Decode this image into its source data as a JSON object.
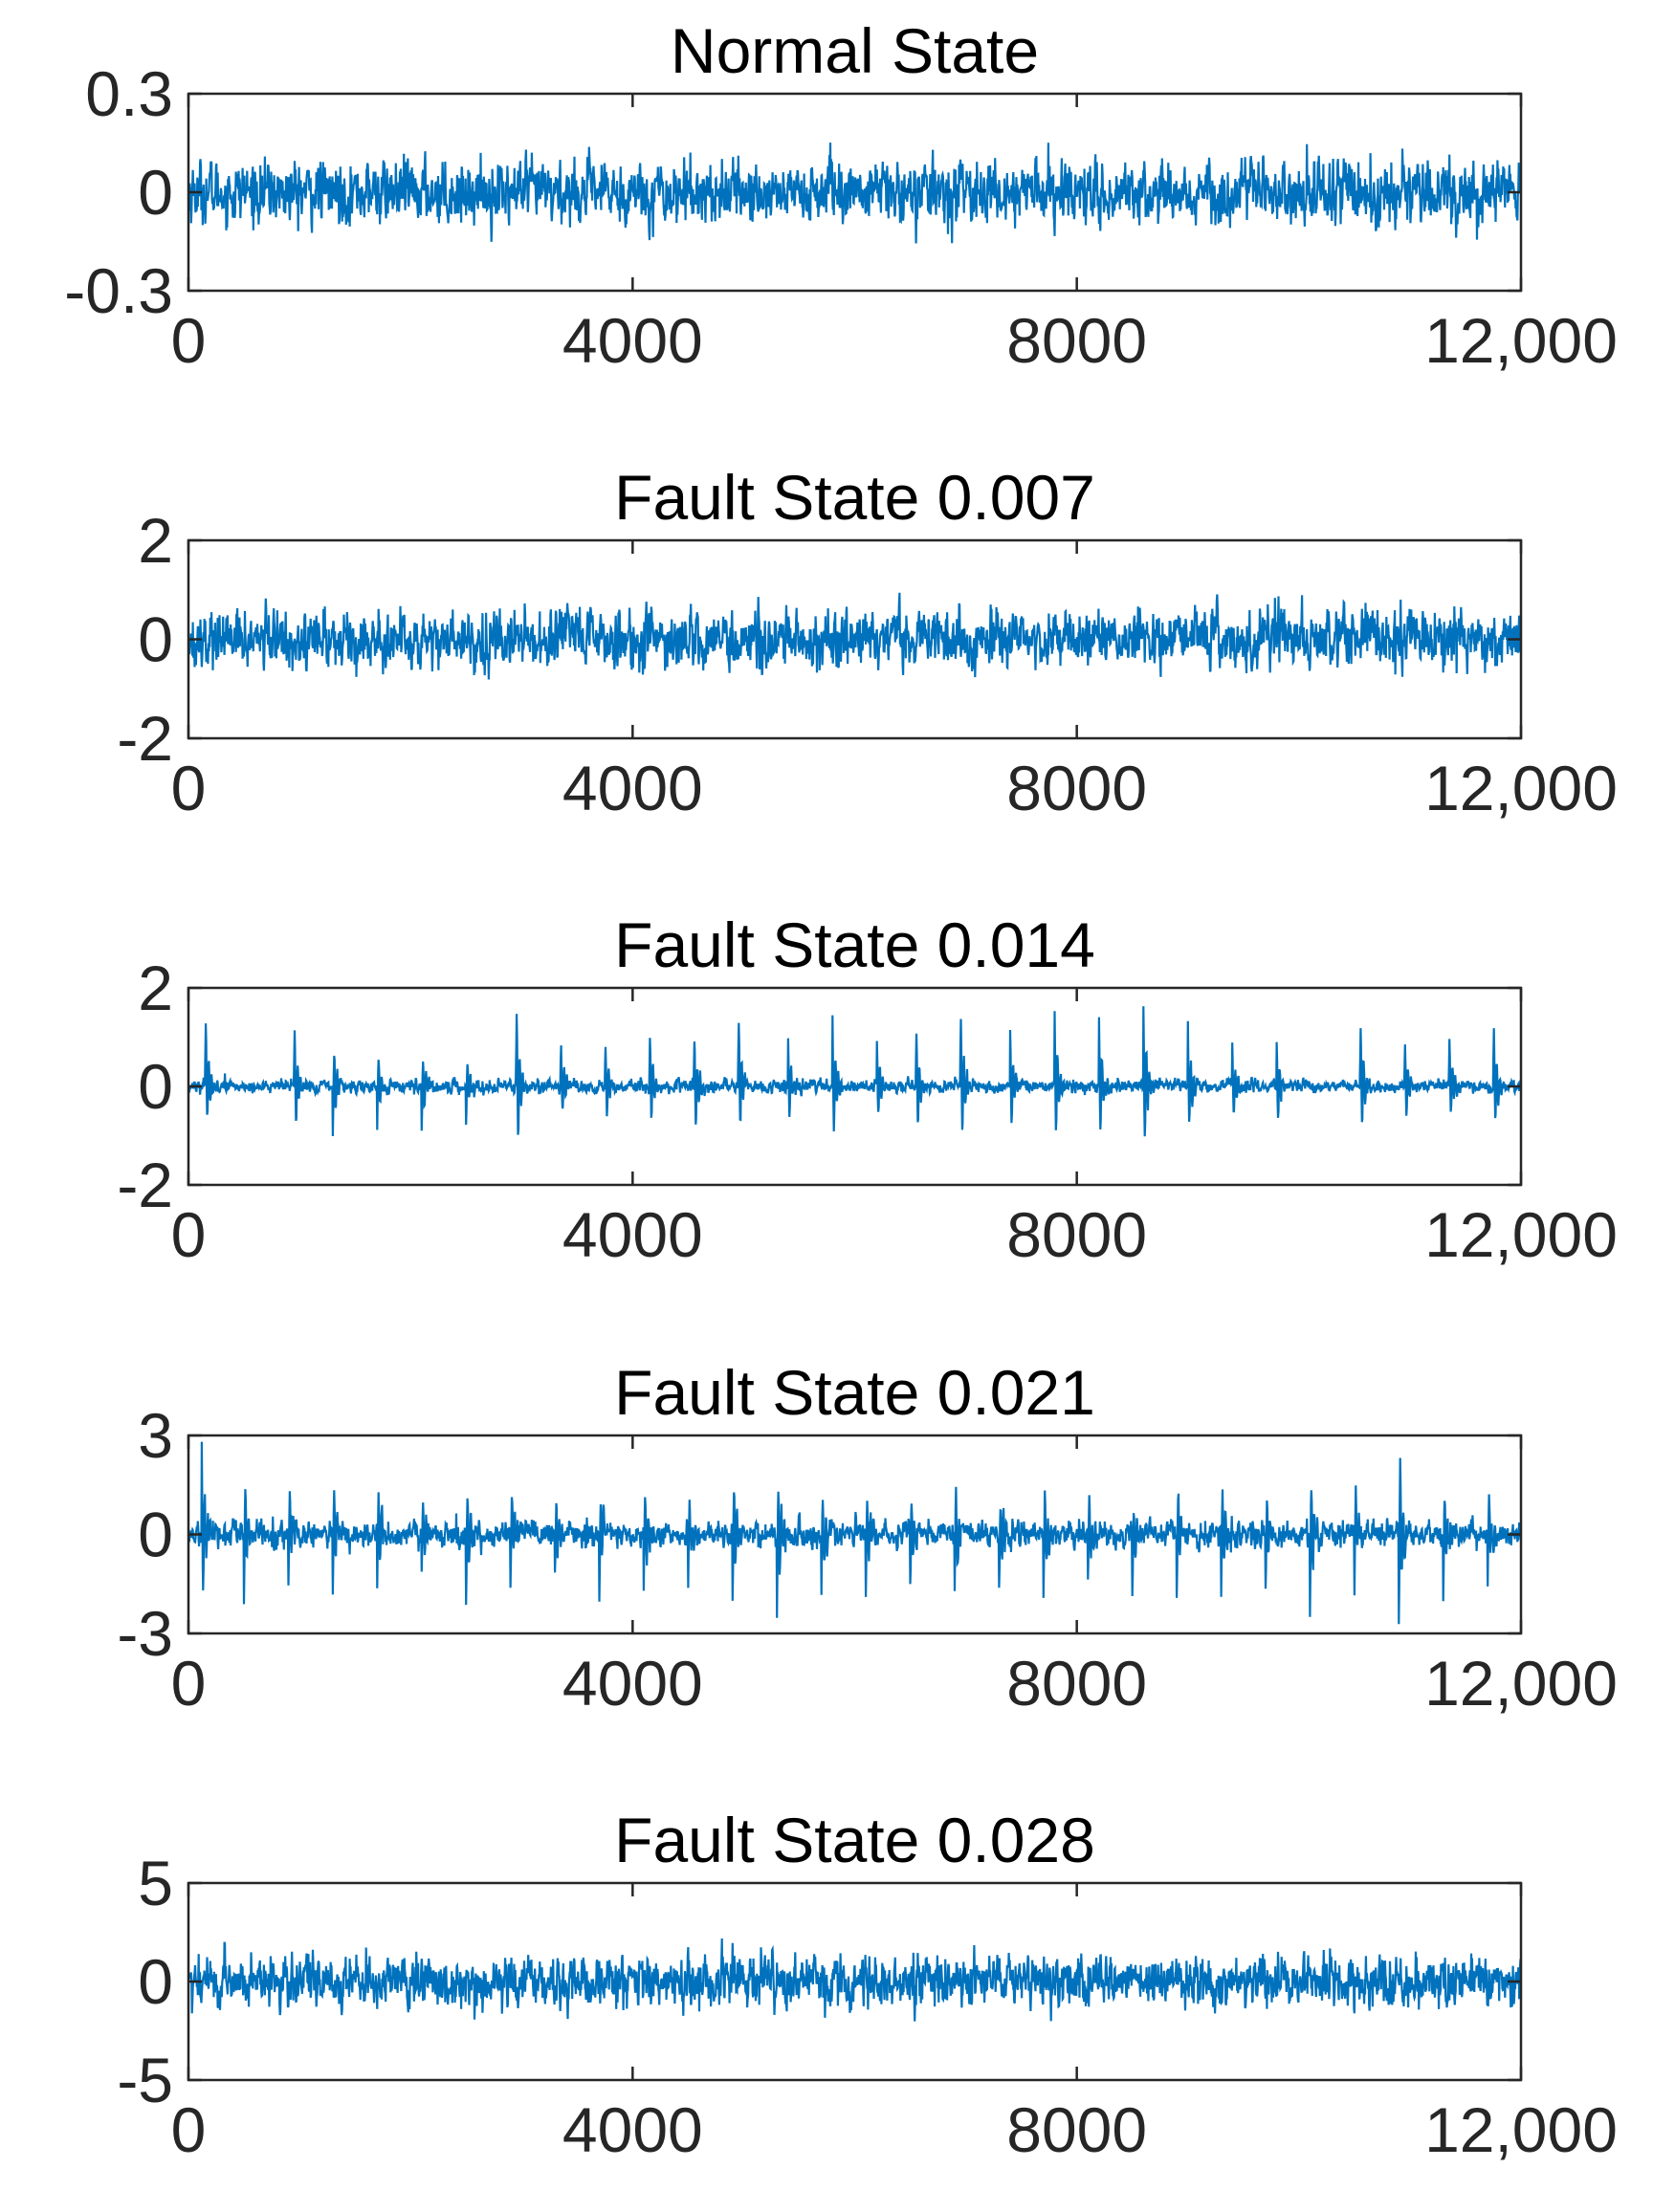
{
  "chart_data": [
    {
      "type": "line",
      "title": "Normal State",
      "xlim": [
        0,
        12000
      ],
      "ylim": [
        -0.3,
        0.3
      ],
      "xticks": [
        0,
        4000,
        8000,
        12000
      ],
      "xtick_labels": [
        "0",
        "4000",
        "8000",
        "12,000"
      ],
      "yticks": [
        -0.3,
        0,
        0.3
      ],
      "ytick_labels": [
        "-0.3",
        "0",
        "0.3"
      ],
      "signal": {
        "amplitude": 0.07,
        "peak": 0.24,
        "impulses": []
      }
    },
    {
      "type": "line",
      "title": "Fault State 0.007",
      "xlim": [
        0,
        12000
      ],
      "ylim": [
        -2,
        2
      ],
      "xticks": [
        0,
        4000,
        8000,
        12000
      ],
      "xtick_labels": [
        "0",
        "4000",
        "8000",
        "12,000"
      ],
      "yticks": [
        -2,
        0,
        2
      ],
      "ytick_labels": [
        "-2",
        "0",
        "2"
      ],
      "signal": {
        "amplitude": 0.42,
        "peak": 1.5,
        "impulses": []
      }
    },
    {
      "type": "line",
      "title": "Fault State 0.014",
      "xlim": [
        0,
        12000
      ],
      "ylim": [
        -2,
        2
      ],
      "xticks": [
        0,
        4000,
        8000,
        12000
      ],
      "xtick_labels": [
        "0",
        "4000",
        "8000",
        "12,000"
      ],
      "yticks": [
        -2,
        0,
        2
      ],
      "ytick_labels": [
        "-2",
        "0",
        "2"
      ],
      "signal": {
        "amplitude": 0.1,
        "peak": 1.9,
        "impulses": [
          {
            "x": 150,
            "amp": 1.6
          },
          {
            "x": 950,
            "amp": 1.5
          },
          {
            "x": 1300,
            "amp": 1.0
          },
          {
            "x": 1700,
            "amp": 0.9
          },
          {
            "x": 2100,
            "amp": 0.9
          },
          {
            "x": 2500,
            "amp": 0.8
          },
          {
            "x": 2950,
            "amp": 1.95
          },
          {
            "x": 3350,
            "amp": 1.0
          },
          {
            "x": 3750,
            "amp": 1.1
          },
          {
            "x": 4150,
            "amp": 1.2
          },
          {
            "x": 4550,
            "amp": 1.3
          },
          {
            "x": 4950,
            "amp": 1.5
          },
          {
            "x": 5400,
            "amp": 1.0
          },
          {
            "x": 5800,
            "amp": 1.4
          },
          {
            "x": 6200,
            "amp": 0.9
          },
          {
            "x": 6550,
            "amp": 1.2
          },
          {
            "x": 6950,
            "amp": 1.7
          },
          {
            "x": 7400,
            "amp": 1.1
          },
          {
            "x": 7800,
            "amp": 1.5
          },
          {
            "x": 8200,
            "amp": 1.4
          },
          {
            "x": 8600,
            "amp": 1.6
          },
          {
            "x": 9000,
            "amp": 1.2
          },
          {
            "x": 9400,
            "amp": 0.9
          },
          {
            "x": 9800,
            "amp": 1.0
          },
          {
            "x": 10550,
            "amp": 1.5
          },
          {
            "x": 10950,
            "amp": 1.0
          },
          {
            "x": 11350,
            "amp": 1.2
          },
          {
            "x": 11750,
            "amp": 1.4
          }
        ]
      }
    },
    {
      "type": "line",
      "title": "Fault State 0.021",
      "xlim": [
        0,
        12000
      ],
      "ylim": [
        -3,
        3
      ],
      "xticks": [
        0,
        4000,
        8000,
        12000
      ],
      "xtick_labels": [
        "0",
        "4000",
        "8000",
        "12,000"
      ],
      "yticks": [
        -3,
        0,
        3
      ],
      "ytick_labels": [
        "-3",
        "0",
        "3"
      ],
      "signal": {
        "amplitude": 0.3,
        "peak": 2.9,
        "impulses": [
          {
            "x": 120,
            "amp": 2.7
          },
          {
            "x": 500,
            "amp": 1.8
          },
          {
            "x": 900,
            "amp": 1.7
          },
          {
            "x": 1300,
            "amp": 1.6
          },
          {
            "x": 1700,
            "amp": 1.8
          },
          {
            "x": 2100,
            "amp": 1.7
          },
          {
            "x": 2500,
            "amp": 1.9
          },
          {
            "x": 2900,
            "amp": 1.6
          },
          {
            "x": 3300,
            "amp": 1.5
          },
          {
            "x": 3700,
            "amp": 1.7
          },
          {
            "x": 4100,
            "amp": 1.8
          },
          {
            "x": 4500,
            "amp": 1.6
          },
          {
            "x": 4900,
            "amp": 1.9
          },
          {
            "x": 5300,
            "amp": 2.9
          },
          {
            "x": 5700,
            "amp": 1.7
          },
          {
            "x": 6100,
            "amp": 1.8
          },
          {
            "x": 6500,
            "amp": 1.6
          },
          {
            "x": 6900,
            "amp": 1.8
          },
          {
            "x": 7300,
            "amp": 1.7
          },
          {
            "x": 7700,
            "amp": 1.9
          },
          {
            "x": 8100,
            "amp": 1.6
          },
          {
            "x": 8500,
            "amp": 1.8
          },
          {
            "x": 8900,
            "amp": 1.7
          },
          {
            "x": 9300,
            "amp": 1.9
          },
          {
            "x": 9700,
            "amp": 1.6
          },
          {
            "x": 10100,
            "amp": 2.8
          },
          {
            "x": 10500,
            "amp": 1.7
          },
          {
            "x": 10900,
            "amp": 2.6
          },
          {
            "x": 11300,
            "amp": 1.8
          },
          {
            "x": 11700,
            "amp": 1.7
          }
        ]
      }
    },
    {
      "type": "line",
      "title": "Fault State 0.028",
      "xlim": [
        0,
        12000
      ],
      "ylim": [
        -5,
        5
      ],
      "xticks": [
        0,
        4000,
        8000,
        12000
      ],
      "xtick_labels": [
        "0",
        "4000",
        "8000",
        "12,000"
      ],
      "yticks": [
        -5,
        0,
        5
      ],
      "ytick_labels": [
        "-5",
        "0",
        "5"
      ],
      "signal": {
        "amplitude": 0.95,
        "peak": 3.8,
        "impulses": []
      }
    }
  ],
  "style": {
    "line_color": "#0072BD",
    "axes_color": "#262626",
    "background": "#ffffff"
  }
}
